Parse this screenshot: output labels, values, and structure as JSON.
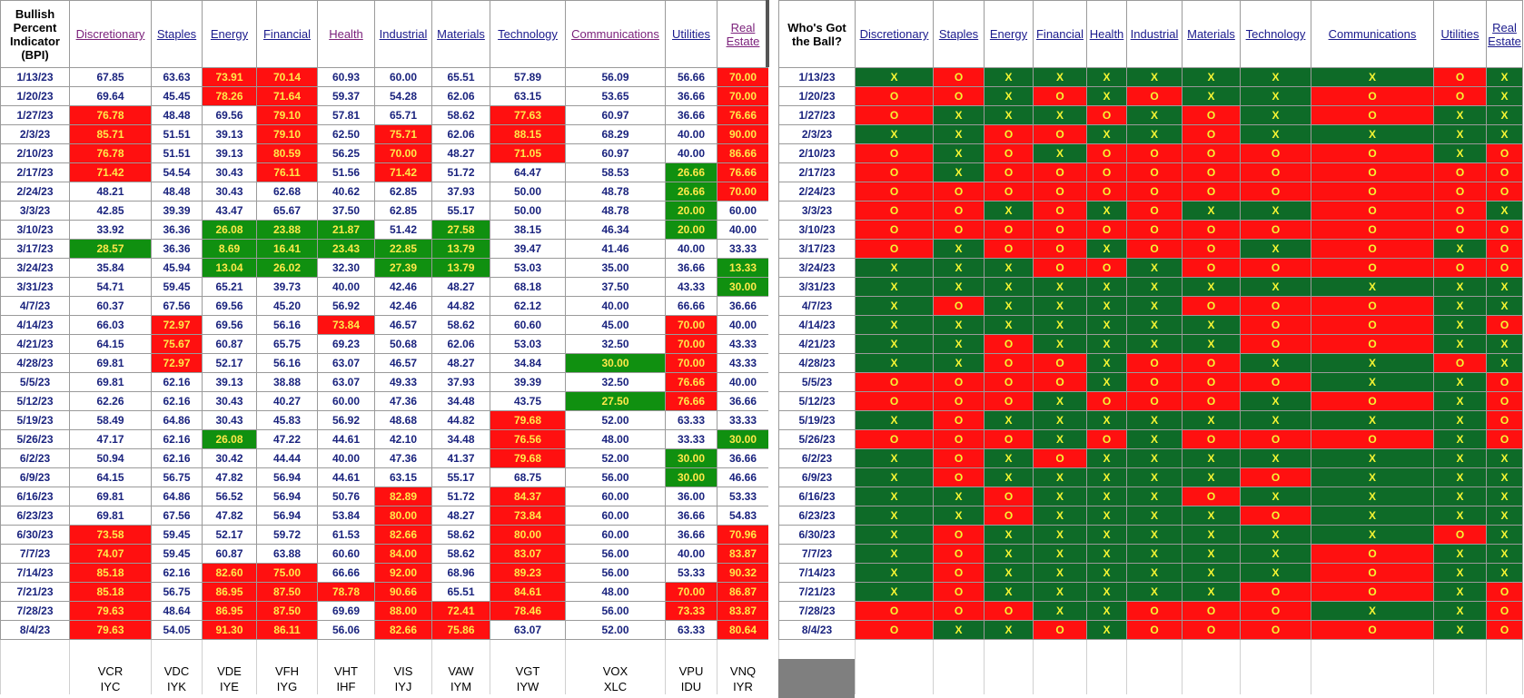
{
  "bpi_header": {
    "corner": "Bullish Percent Indicator (BPI)",
    "sectors": [
      "Discretionary",
      "Staples",
      "Energy",
      "Financial",
      "Health",
      "Industrial",
      "Materials",
      "Technology",
      "Communications",
      "Utilities",
      "Real Estate"
    ]
  },
  "ball_header": {
    "corner": "Who's Got the Ball?",
    "sectors": [
      "Discretionary",
      "Staples",
      "Energy",
      "Financial",
      "Health",
      "Industrial",
      "Materials",
      "Technology",
      "Communications",
      "Utilities",
      "Real Estate"
    ]
  },
  "colors": {
    "red": "#ff1010",
    "green": "#109010",
    "x_green": "#0e6b28",
    "mark_yellow": "#f5f533",
    "date_blue": "#1a237e"
  },
  "rows": [
    {
      "date": "1/13/23",
      "values": [
        "67.85",
        "63.63",
        "73.91",
        "70.14",
        "60.93",
        "60.00",
        "65.51",
        "57.89",
        "56.09",
        "56.66",
        "70.00"
      ],
      "hl": [
        "",
        "",
        "r",
        "r",
        "",
        "",
        "",
        "",
        "",
        "",
        "r"
      ],
      "ball": "XOXXXXXXXOX"
    },
    {
      "date": "1/20/23",
      "values": [
        "69.64",
        "45.45",
        "78.26",
        "71.64",
        "59.37",
        "54.28",
        "62.06",
        "63.15",
        "53.65",
        "36.66",
        "70.00"
      ],
      "hl": [
        "",
        "",
        "r",
        "r",
        "",
        "",
        "",
        "",
        "",
        "",
        "r"
      ],
      "ball": "OOXOXOXXOOX"
    },
    {
      "date": "1/27/23",
      "values": [
        "76.78",
        "48.48",
        "69.56",
        "79.10",
        "57.81",
        "65.71",
        "58.62",
        "77.63",
        "60.97",
        "36.66",
        "76.66"
      ],
      "hl": [
        "r",
        "",
        "",
        "r",
        "",
        "",
        "",
        "r",
        "",
        "",
        "r"
      ],
      "ball": "OXXXOXOXOXX"
    },
    {
      "date": "2/3/23",
      "values": [
        "85.71",
        "51.51",
        "39.13",
        "79.10",
        "62.50",
        "75.71",
        "62.06",
        "88.15",
        "68.29",
        "40.00",
        "90.00"
      ],
      "hl": [
        "r",
        "",
        "",
        "r",
        "",
        "r",
        "",
        "r",
        "",
        "",
        "r"
      ],
      "ball": "XXOOXXOXXXX"
    },
    {
      "date": "2/10/23",
      "values": [
        "76.78",
        "51.51",
        "39.13",
        "80.59",
        "56.25",
        "70.00",
        "48.27",
        "71.05",
        "60.97",
        "40.00",
        "86.66"
      ],
      "hl": [
        "r",
        "",
        "",
        "r",
        "",
        "r",
        "",
        "r",
        "",
        "",
        "r"
      ],
      "ball": "OXOXOOOOOXO"
    },
    {
      "date": "2/17/23",
      "values": [
        "71.42",
        "54.54",
        "30.43",
        "76.11",
        "51.56",
        "71.42",
        "51.72",
        "64.47",
        "58.53",
        "26.66",
        "76.66"
      ],
      "hl": [
        "r",
        "",
        "",
        "r",
        "",
        "r",
        "",
        "",
        "",
        "g",
        "r"
      ],
      "ball": "OXOOOOOOOOO"
    },
    {
      "date": "2/24/23",
      "values": [
        "48.21",
        "48.48",
        "30.43",
        "62.68",
        "40.62",
        "62.85",
        "37.93",
        "50.00",
        "48.78",
        "26.66",
        "70.00"
      ],
      "hl": [
        "",
        "",
        "",
        "",
        "",
        "",
        "",
        "",
        "",
        "g",
        "r"
      ],
      "ball": "OOOOOOOOOOO"
    },
    {
      "date": "3/3/23",
      "values": [
        "42.85",
        "39.39",
        "43.47",
        "65.67",
        "37.50",
        "62.85",
        "55.17",
        "50.00",
        "48.78",
        "20.00",
        "60.00"
      ],
      "hl": [
        "",
        "",
        "",
        "",
        "",
        "",
        "",
        "",
        "",
        "g",
        ""
      ],
      "ball": "OOXOXOXXOOX"
    },
    {
      "date": "3/10/23",
      "values": [
        "33.92",
        "36.36",
        "26.08",
        "23.88",
        "21.87",
        "51.42",
        "27.58",
        "38.15",
        "46.34",
        "20.00",
        "40.00"
      ],
      "hl": [
        "",
        "",
        "g",
        "g",
        "g",
        "",
        "g",
        "",
        "",
        "g",
        ""
      ],
      "ball": "OOOOOOOOOOO"
    },
    {
      "date": "3/17/23",
      "values": [
        "28.57",
        "36.36",
        "8.69",
        "16.41",
        "23.43",
        "22.85",
        "13.79",
        "39.47",
        "41.46",
        "40.00",
        "33.33"
      ],
      "hl": [
        "g",
        "",
        "g",
        "g",
        "g",
        "g",
        "g",
        "",
        "",
        "",
        ""
      ],
      "ball": "OXOOXOOXOXO"
    },
    {
      "date": "3/24/23",
      "values": [
        "35.84",
        "45.94",
        "13.04",
        "26.02",
        "32.30",
        "27.39",
        "13.79",
        "53.03",
        "35.00",
        "36.66",
        "13.33"
      ],
      "hl": [
        "",
        "",
        "g",
        "g",
        "",
        "g",
        "g",
        "",
        "",
        "",
        "g"
      ],
      "ball": "XXXOOXOOOOO"
    },
    {
      "date": "3/31/23",
      "values": [
        "54.71",
        "59.45",
        "65.21",
        "39.73",
        "40.00",
        "42.46",
        "48.27",
        "68.18",
        "37.50",
        "43.33",
        "30.00"
      ],
      "hl": [
        "",
        "",
        "",
        "",
        "",
        "",
        "",
        "",
        "",
        "",
        "g"
      ],
      "ball": "XXXXXXXXXXX"
    },
    {
      "date": "4/7/23",
      "values": [
        "60.37",
        "67.56",
        "69.56",
        "45.20",
        "56.92",
        "42.46",
        "44.82",
        "62.12",
        "40.00",
        "66.66",
        "36.66"
      ],
      "hl": [
        "",
        "",
        "",
        "",
        "",
        "",
        "",
        "",
        "",
        "",
        ""
      ],
      "ball": "XOXXXXOOOXX"
    },
    {
      "date": "4/14/23",
      "values": [
        "66.03",
        "72.97",
        "69.56",
        "56.16",
        "73.84",
        "46.57",
        "58.62",
        "60.60",
        "45.00",
        "70.00",
        "40.00"
      ],
      "hl": [
        "",
        "r",
        "",
        "",
        "r",
        "",
        "",
        "",
        "",
        "r",
        ""
      ],
      "ball": "XXXXXXXOOXO"
    },
    {
      "date": "4/21/23",
      "values": [
        "64.15",
        "75.67",
        "60.87",
        "65.75",
        "69.23",
        "50.68",
        "62.06",
        "53.03",
        "32.50",
        "70.00",
        "43.33"
      ],
      "hl": [
        "",
        "r",
        "",
        "",
        "",
        "",
        "",
        "",
        "",
        "r",
        ""
      ],
      "ball": "XXOXXXXOOXX"
    },
    {
      "date": "4/28/23",
      "values": [
        "69.81",
        "72.97",
        "52.17",
        "56.16",
        "63.07",
        "46.57",
        "48.27",
        "34.84",
        "30.00",
        "70.00",
        "43.33"
      ],
      "hl": [
        "",
        "r",
        "",
        "",
        "",
        "",
        "",
        "",
        "g",
        "r",
        ""
      ],
      "ball": "XXOOXOOXXOX"
    },
    {
      "date": "5/5/23",
      "values": [
        "69.81",
        "62.16",
        "39.13",
        "38.88",
        "63.07",
        "49.33",
        "37.93",
        "39.39",
        "32.50",
        "76.66",
        "40.00"
      ],
      "hl": [
        "",
        "",
        "",
        "",
        "",
        "",
        "",
        "",
        "",
        "r",
        ""
      ],
      "ball": "OOOOXOOOXXO"
    },
    {
      "date": "5/12/23",
      "values": [
        "62.26",
        "62.16",
        "30.43",
        "40.27",
        "60.00",
        "47.36",
        "34.48",
        "43.75",
        "27.50",
        "76.66",
        "36.66"
      ],
      "hl": [
        "",
        "",
        "",
        "",
        "",
        "",
        "",
        "",
        "g",
        "r",
        ""
      ],
      "ball": "OOOXOOOXOXO"
    },
    {
      "date": "5/19/23",
      "values": [
        "58.49",
        "64.86",
        "30.43",
        "45.83",
        "56.92",
        "48.68",
        "44.82",
        "79.68",
        "52.00",
        "63.33",
        "33.33"
      ],
      "hl": [
        "",
        "",
        "",
        "",
        "",
        "",
        "",
        "r",
        "",
        "",
        ""
      ],
      "ball": "XOXXXXXXXXO"
    },
    {
      "date": "5/26/23",
      "values": [
        "47.17",
        "62.16",
        "26.08",
        "47.22",
        "44.61",
        "42.10",
        "34.48",
        "76.56",
        "48.00",
        "33.33",
        "30.00"
      ],
      "hl": [
        "",
        "",
        "g",
        "",
        "",
        "",
        "",
        "r",
        "",
        "",
        "g"
      ],
      "ball": "OOOXOXOOOXO"
    },
    {
      "date": "6/2/23",
      "values": [
        "50.94",
        "62.16",
        "30.42",
        "44.44",
        "40.00",
        "47.36",
        "41.37",
        "79.68",
        "52.00",
        "30.00",
        "36.66"
      ],
      "hl": [
        "",
        "",
        "",
        "",
        "",
        "",
        "",
        "r",
        "",
        "g",
        ""
      ],
      "ball": "XOXOXXXXXXX"
    },
    {
      "date": "6/9/23",
      "values": [
        "64.15",
        "56.75",
        "47.82",
        "56.94",
        "44.61",
        "63.15",
        "55.17",
        "68.75",
        "56.00",
        "30.00",
        "46.66"
      ],
      "hl": [
        "",
        "",
        "",
        "",
        "",
        "",
        "",
        "",
        "",
        "g",
        ""
      ],
      "ball": "XOXXXXXOXXX"
    },
    {
      "date": "6/16/23",
      "values": [
        "69.81",
        "64.86",
        "56.52",
        "56.94",
        "50.76",
        "82.89",
        "51.72",
        "84.37",
        "60.00",
        "36.00",
        "53.33"
      ],
      "hl": [
        "",
        "",
        "",
        "",
        "",
        "r",
        "",
        "r",
        "",
        "",
        ""
      ],
      "ball": "XXOXXXOXXXX"
    },
    {
      "date": "6/23/23",
      "values": [
        "69.81",
        "67.56",
        "47.82",
        "56.94",
        "53.84",
        "80.00",
        "48.27",
        "73.84",
        "60.00",
        "36.66",
        "54.83"
      ],
      "hl": [
        "",
        "",
        "",
        "",
        "",
        "r",
        "",
        "r",
        "",
        "",
        ""
      ],
      "ball": "XXOXXXXOXXX"
    },
    {
      "date": "6/30/23",
      "values": [
        "73.58",
        "59.45",
        "52.17",
        "59.72",
        "61.53",
        "82.66",
        "58.62",
        "80.00",
        "60.00",
        "36.66",
        "70.96"
      ],
      "hl": [
        "r",
        "",
        "",
        "",
        "",
        "r",
        "",
        "r",
        "",
        "",
        "r"
      ],
      "ball": "XOXXXXXXXOX"
    },
    {
      "date": "7/7/23",
      "values": [
        "74.07",
        "59.45",
        "60.87",
        "63.88",
        "60.60",
        "84.00",
        "58.62",
        "83.07",
        "56.00",
        "40.00",
        "83.87"
      ],
      "hl": [
        "r",
        "",
        "",
        "",
        "",
        "r",
        "",
        "r",
        "",
        "",
        "r"
      ],
      "ball": "XOXXXXXXOXX"
    },
    {
      "date": "7/14/23",
      "values": [
        "85.18",
        "62.16",
        "82.60",
        "75.00",
        "66.66",
        "92.00",
        "68.96",
        "89.23",
        "56.00",
        "53.33",
        "90.32"
      ],
      "hl": [
        "r",
        "",
        "r",
        "r",
        "",
        "r",
        "",
        "r",
        "",
        "",
        "r"
      ],
      "ball": "XOXXXXXXOXX"
    },
    {
      "date": "7/21/23",
      "values": [
        "85.18",
        "56.75",
        "86.95",
        "87.50",
        "78.78",
        "90.66",
        "65.51",
        "84.61",
        "48.00",
        "70.00",
        "86.87"
      ],
      "hl": [
        "r",
        "",
        "r",
        "r",
        "r",
        "r",
        "",
        "r",
        "",
        "r",
        "r"
      ],
      "ball": "XOXXXXXOOXO"
    },
    {
      "date": "7/28/23",
      "values": [
        "79.63",
        "48.64",
        "86.95",
        "87.50",
        "69.69",
        "88.00",
        "72.41",
        "78.46",
        "56.00",
        "73.33",
        "83.87"
      ],
      "hl": [
        "r",
        "",
        "r",
        "r",
        "",
        "r",
        "r",
        "r",
        "",
        "r",
        "r"
      ],
      "ball": "OOOXXOOOXXO"
    },
    {
      "date": "8/4/23",
      "values": [
        "79.63",
        "54.05",
        "91.30",
        "86.11",
        "56.06",
        "82.66",
        "75.86",
        "63.07",
        "52.00",
        "63.33",
        "80.64"
      ],
      "hl": [
        "r",
        "",
        "r",
        "r",
        "",
        "r",
        "r",
        "",
        "",
        "",
        "r"
      ],
      "ball": "OXXOXOOOOXO"
    }
  ],
  "tickers": {
    "row1": [
      "VCR",
      "VDC",
      "VDE",
      "VFH",
      "VHT",
      "VIS",
      "VAW",
      "VGT",
      "VOX",
      "VPU",
      "VNQ"
    ],
    "row2": [
      "IYC",
      "IYK",
      "IYE",
      "IYG",
      "IHF",
      "IYJ",
      "IYM",
      "IYW",
      "XLC",
      "IDU",
      "IYR"
    ]
  },
  "marks": {
    "X": "X",
    "O": "O"
  }
}
